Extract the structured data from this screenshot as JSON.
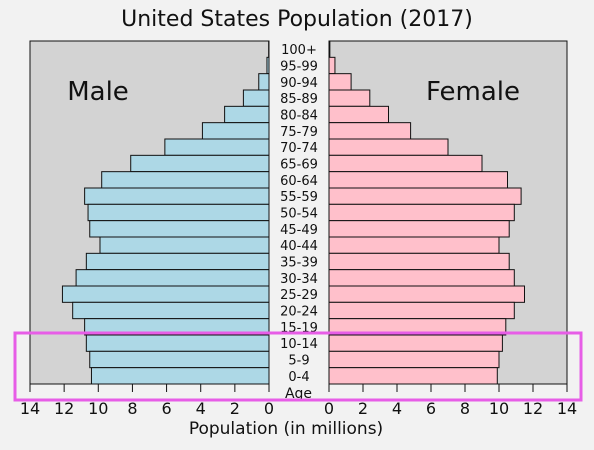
{
  "chart_data": {
    "type": "bar",
    "title": "United States Population (2017)",
    "xlabel": "Population (in millions)",
    "age_axis_label": "Age",
    "xlim": [
      0,
      14
    ],
    "xticks": [
      14,
      12,
      10,
      8,
      6,
      4,
      2,
      0
    ],
    "female_xticks": [
      0,
      2,
      4,
      6,
      8,
      10,
      12,
      14
    ],
    "categories": [
      "100+",
      "95-99",
      "90-94",
      "85-89",
      "80-84",
      "75-79",
      "70-74",
      "65-69",
      "60-64",
      "55-59",
      "50-54",
      "45-49",
      "40-44",
      "35-39",
      "30-34",
      "25-29",
      "20-24",
      "15-19",
      "10-14",
      "5-9",
      "0-4"
    ],
    "series": [
      {
        "name": "Male",
        "color": "#add8e6",
        "values": [
          0.02,
          0.12,
          0.6,
          1.5,
          2.6,
          3.9,
          6.1,
          8.1,
          9.8,
          10.8,
          10.6,
          10.5,
          9.9,
          10.7,
          11.3,
          12.1,
          11.5,
          10.8,
          10.7,
          10.5,
          10.4
        ]
      },
      {
        "name": "Female",
        "color": "#ffc0cb",
        "values": [
          0.05,
          0.35,
          1.3,
          2.4,
          3.5,
          4.8,
          7.0,
          9.0,
          10.5,
          11.3,
          10.9,
          10.6,
          10.0,
          10.6,
          10.9,
          11.5,
          10.9,
          10.4,
          10.2,
          10.0,
          9.9
        ]
      }
    ],
    "grid": false,
    "background_color": "#d3d3d3",
    "highlight": {
      "color": "#e75de7",
      "categories": [
        "10-14",
        "5-9",
        "0-4"
      ]
    }
  }
}
